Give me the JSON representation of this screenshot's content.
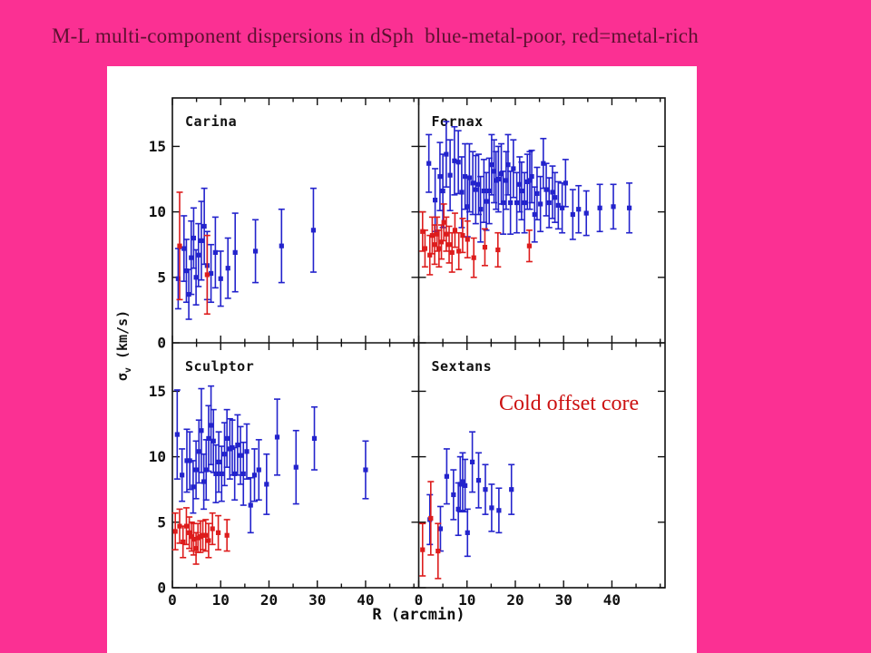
{
  "slide": {
    "title": "M-L multi-component dispersions in dSph  blue-metal-poor, red=metal-rich",
    "background_color": "#fb3093",
    "title_color": "#5c1130"
  },
  "annotation": {
    "text": "Cold offset core",
    "color": "#cc1111"
  },
  "axes": {
    "x_label": "R (arcmin)",
    "y_label_sigma": "σ",
    "y_label_sub": "v",
    "y_label_unit": " (km/s)",
    "x_ticks": [
      0,
      10,
      20,
      30,
      40
    ],
    "x_minor_ticks": [
      5,
      15,
      25,
      35,
      45,
      50
    ],
    "y_ticks": [
      0,
      5,
      10,
      15
    ],
    "x_range": [
      0,
      51
    ],
    "y_range": [
      0,
      18.7
    ]
  },
  "chart_data": {
    "type": "scatter",
    "title": "M-L multi-component dispersions in dSph",
    "xlabel": "R (arcmin)",
    "ylabel": "σv (km/s)",
    "xlim": [
      0,
      51
    ],
    "ylim": [
      0,
      18.7
    ],
    "grid": false,
    "legend": {
      "blue": "metal-poor",
      "red": "metal-rich"
    },
    "colors": {
      "metal_poor": "#2323cc",
      "metal_rich": "#dd1c1c",
      "frame": "#111111"
    },
    "point_format": "[R_arcmin, sigma_kms, error_kms]",
    "panels": [
      {
        "name": "Carina",
        "row": 0,
        "col": 0,
        "series": [
          {
            "name": "metal-poor",
            "color_key": "metal_poor",
            "points": [
              [
                1.2,
                4.9,
                2.3
              ],
              [
                2.4,
                7.2,
                2.5
              ],
              [
                2.9,
                5.5,
                2.4
              ],
              [
                3.4,
                3.7,
                1.9
              ],
              [
                3.9,
                6.5,
                2.8
              ],
              [
                4.4,
                8.0,
                2.3
              ],
              [
                4.9,
                5.0,
                2.1
              ],
              [
                5.4,
                6.7,
                2.4
              ],
              [
                6.0,
                7.8,
                3.0
              ],
              [
                6.6,
                8.9,
                2.9
              ],
              [
                7.2,
                5.9,
                2.6
              ],
              [
                8.0,
                5.3,
                2.2
              ],
              [
                8.9,
                6.9,
                2.7
              ],
              [
                10.0,
                4.9,
                2.1
              ],
              [
                11.5,
                5.7,
                2.3
              ],
              [
                13.0,
                6.9,
                3.0
              ],
              [
                17.2,
                7.0,
                2.4
              ],
              [
                22.6,
                7.4,
                2.8
              ],
              [
                29.2,
                8.6,
                3.2
              ]
            ]
          },
          {
            "name": "metal-rich",
            "color_key": "metal_rich",
            "points": [
              [
                1.5,
                7.4,
                4.1
              ],
              [
                7.2,
                5.2,
                3.0
              ]
            ]
          }
        ]
      },
      {
        "name": "Fornax",
        "row": 0,
        "col": 1,
        "series": [
          {
            "name": "metal-poor",
            "color_key": "metal_poor",
            "points": [
              [
                2.1,
                13.7,
                2.2
              ],
              [
                3.4,
                10.9,
                2.4
              ],
              [
                4.4,
                12.7,
                2.6
              ],
              [
                5.0,
                11.6,
                2.8
              ],
              [
                5.7,
                14.4,
                2.5
              ],
              [
                6.5,
                12.8,
                2.7
              ],
              [
                7.4,
                13.9,
                2.6
              ],
              [
                8.2,
                13.8,
                2.4
              ],
              [
                8.9,
                11.5,
                2.7
              ],
              [
                9.6,
                12.7,
                2.5
              ],
              [
                10.1,
                10.4,
                2.3
              ],
              [
                10.5,
                12.6,
                2.6
              ],
              [
                11.2,
                12.2,
                2.4
              ],
              [
                11.8,
                11.7,
                2.6
              ],
              [
                12.4,
                12.1,
                2.3
              ],
              [
                12.8,
                10.2,
                2.5
              ],
              [
                13.5,
                11.6,
                2.4
              ],
              [
                14.0,
                10.8,
                2.2
              ],
              [
                14.6,
                11.6,
                2.5
              ],
              [
                15.1,
                13.6,
                2.3
              ],
              [
                15.6,
                13.1,
                2.4
              ],
              [
                16.0,
                12.4,
                2.2
              ],
              [
                16.5,
                12.5,
                2.5
              ],
              [
                17.1,
                12.9,
                2.3
              ],
              [
                17.5,
                10.7,
                2.4
              ],
              [
                18.1,
                12.4,
                2.2
              ],
              [
                18.5,
                13.6,
                2.3
              ],
              [
                19.0,
                10.7,
                2.4
              ],
              [
                19.6,
                13.3,
                2.2
              ],
              [
                20.3,
                10.7,
                2.3
              ],
              [
                20.9,
                12.1,
                2.1
              ],
              [
                21.3,
                11.6,
                2.2
              ],
              [
                21.9,
                10.7,
                2.3
              ],
              [
                22.5,
                12.3,
                2.1
              ],
              [
                23.0,
                12.4,
                2.2
              ],
              [
                23.4,
                12.7,
                2.0
              ],
              [
                24.0,
                9.8,
                2.1
              ],
              [
                24.5,
                11.4,
                2.0
              ],
              [
                25.2,
                10.6,
                2.1
              ],
              [
                25.8,
                13.7,
                1.9
              ],
              [
                26.4,
                11.7,
                2.0
              ],
              [
                27.0,
                10.7,
                1.9
              ],
              [
                27.7,
                11.5,
                2.0
              ],
              [
                28.2,
                11.1,
                1.9
              ],
              [
                28.9,
                10.5,
                1.8
              ],
              [
                29.7,
                10.3,
                1.9
              ],
              [
                30.4,
                12.2,
                1.8
              ],
              [
                31.9,
                9.8,
                1.9
              ],
              [
                33.1,
                10.2,
                1.8
              ],
              [
                34.7,
                9.9,
                1.7
              ],
              [
                37.5,
                10.3,
                1.8
              ],
              [
                40.3,
                10.4,
                1.7
              ],
              [
                43.6,
                10.3,
                1.9
              ]
            ]
          },
          {
            "name": "metal-rich",
            "color_key": "metal_rich",
            "points": [
              [
                0.8,
                8.5,
                1.5
              ],
              [
                1.3,
                7.2,
                1.4
              ],
              [
                2.3,
                6.7,
                1.5
              ],
              [
                2.8,
                8.2,
                1.4
              ],
              [
                3.3,
                7.5,
                1.5
              ],
              [
                3.8,
                8.3,
                1.3
              ],
              [
                4.2,
                7.2,
                1.4
              ],
              [
                4.7,
                7.7,
                1.3
              ],
              [
                5.2,
                9.2,
                1.4
              ],
              [
                5.7,
                8.3,
                1.3
              ],
              [
                6.3,
                7.5,
                1.4
              ],
              [
                6.9,
                6.9,
                1.5
              ],
              [
                7.5,
                8.6,
                1.3
              ],
              [
                8.3,
                7.0,
                1.4
              ],
              [
                9.1,
                8.2,
                1.3
              ],
              [
                10.1,
                7.9,
                1.4
              ],
              [
                11.4,
                6.5,
                1.5
              ],
              [
                13.7,
                7.3,
                1.4
              ],
              [
                16.4,
                7.1,
                1.3
              ],
              [
                22.9,
                7.4,
                1.2
              ]
            ]
          }
        ]
      },
      {
        "name": "Sculptor",
        "row": 1,
        "col": 0,
        "series": [
          {
            "name": "metal-poor",
            "color_key": "metal_poor",
            "points": [
              [
                1.0,
                11.7,
                3.4
              ],
              [
                2.0,
                8.6,
                2.0
              ],
              [
                3.0,
                9.7,
                2.4
              ],
              [
                3.6,
                9.7,
                2.2
              ],
              [
                4.3,
                7.7,
                2.0
              ],
              [
                4.9,
                9.0,
                2.2
              ],
              [
                5.5,
                10.4,
                2.4
              ],
              [
                6.0,
                12.0,
                3.2
              ],
              [
                6.5,
                8.1,
                2.1
              ],
              [
                7.0,
                9.0,
                2.3
              ],
              [
                7.5,
                11.4,
                2.5
              ],
              [
                8.0,
                12.4,
                3.0
              ],
              [
                8.5,
                11.2,
                2.4
              ],
              [
                9.0,
                8.7,
                2.2
              ],
              [
                9.6,
                9.6,
                2.3
              ],
              [
                10.2,
                8.7,
                2.1
              ],
              [
                10.8,
                10.2,
                2.4
              ],
              [
                11.3,
                11.4,
                2.2
              ],
              [
                11.9,
                10.6,
                2.3
              ],
              [
                12.4,
                10.7,
                2.1
              ],
              [
                12.9,
                8.7,
                2.0
              ],
              [
                13.5,
                10.9,
                2.3
              ],
              [
                14.1,
                10.1,
                2.2
              ],
              [
                14.7,
                8.7,
                2.4
              ],
              [
                15.4,
                10.4,
                2.1
              ],
              [
                16.2,
                6.3,
                2.1
              ],
              [
                17.0,
                8.6,
                2.0
              ],
              [
                17.9,
                9.0,
                2.3
              ],
              [
                19.5,
                7.9,
                2.3
              ],
              [
                21.7,
                11.5,
                2.9
              ],
              [
                25.6,
                9.2,
                2.8
              ],
              [
                29.4,
                11.4,
                2.4
              ],
              [
                40.0,
                9.0,
                2.2
              ]
            ]
          },
          {
            "name": "metal-rich",
            "color_key": "metal_rich",
            "points": [
              [
                0.6,
                4.3,
                1.4
              ],
              [
                1.5,
                4.7,
                1.3
              ],
              [
                2.2,
                3.5,
                1.2
              ],
              [
                2.9,
                4.7,
                1.4
              ],
              [
                3.5,
                4.2,
                1.2
              ],
              [
                4.0,
                3.9,
                1.1
              ],
              [
                4.4,
                3.7,
                1.2
              ],
              [
                4.9,
                3.0,
                1.2
              ],
              [
                5.3,
                3.8,
                1.1
              ],
              [
                5.8,
                3.9,
                1.2
              ],
              [
                6.3,
                4.0,
                1.1
              ],
              [
                6.9,
                4.0,
                1.2
              ],
              [
                7.5,
                3.6,
                1.3
              ],
              [
                8.3,
                4.5,
                1.2
              ],
              [
                9.5,
                4.2,
                1.3
              ],
              [
                11.3,
                4.0,
                1.2
              ]
            ]
          }
        ]
      },
      {
        "name": "Sextans",
        "row": 1,
        "col": 1,
        "series": [
          {
            "name": "metal-poor",
            "color_key": "metal_poor",
            "points": [
              [
                2.3,
                5.2,
                1.9
              ],
              [
                4.5,
                4.5,
                1.7
              ],
              [
                5.8,
                8.5,
                2.1
              ],
              [
                7.2,
                7.1,
                1.9
              ],
              [
                8.2,
                6.0,
                2.0
              ],
              [
                8.6,
                7.9,
                2.1
              ],
              [
                9.1,
                8.1,
                2.2
              ],
              [
                9.6,
                7.8,
                2.0
              ],
              [
                10.1,
                4.2,
                1.8
              ],
              [
                11.1,
                9.6,
                2.3
              ],
              [
                12.4,
                8.2,
                2.1
              ],
              [
                13.8,
                7.5,
                1.9
              ],
              [
                15.1,
                6.1,
                1.8
              ],
              [
                16.6,
                5.9,
                1.7
              ],
              [
                19.2,
                7.5,
                1.9
              ]
            ]
          },
          {
            "name": "metal-rich",
            "color_key": "metal_rich",
            "points": [
              [
                0.8,
                2.9,
                2.0
              ],
              [
                2.5,
                5.3,
                2.8
              ],
              [
                4.0,
                2.8,
                2.1
              ]
            ]
          }
        ]
      }
    ]
  }
}
